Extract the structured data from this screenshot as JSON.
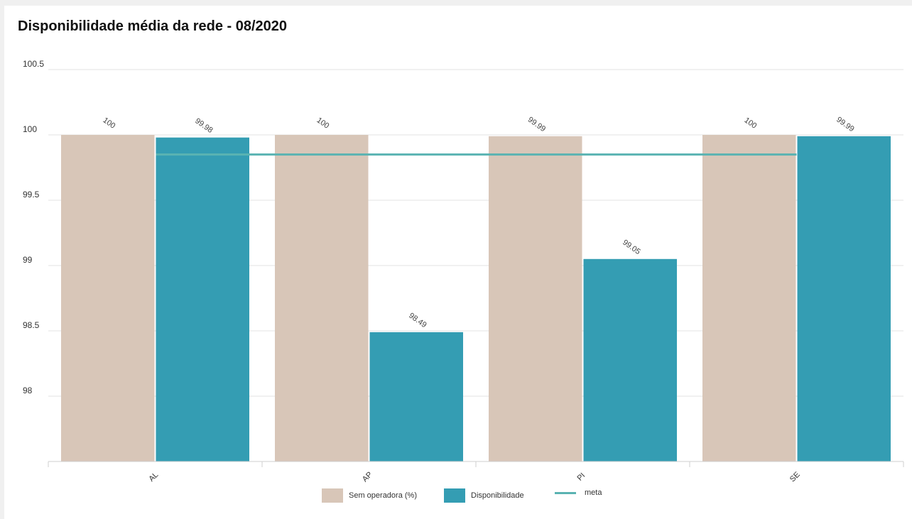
{
  "chart_data": {
    "type": "bar",
    "title": "Disponibilidade média da rede - 08/2020",
    "categories": [
      "AL",
      "AP",
      "PI",
      "SE"
    ],
    "series": [
      {
        "name": "Sem operadora (%)",
        "type": "bar",
        "color": "#d8c6b8",
        "values": [
          100,
          100,
          99.99,
          100
        ],
        "labels": [
          "100",
          "100",
          "99.99",
          "100"
        ]
      },
      {
        "name": "Disponibilidade",
        "type": "bar",
        "color": "#349db3",
        "values": [
          99.98,
          98.49,
          99.05,
          99.99
        ],
        "labels": [
          "99.98",
          "98.49",
          "99.05",
          "99.99"
        ]
      },
      {
        "name": "meta",
        "type": "line",
        "color": "#5ab3b2",
        "value": 99.85
      }
    ],
    "ylim": [
      97.5,
      100.5
    ],
    "yticks": [
      "98",
      "98.5",
      "99",
      "99.5",
      "100",
      "100.5"
    ],
    "xlabel": "",
    "ylabel": "",
    "grid": true,
    "legend_position": "bottom"
  }
}
